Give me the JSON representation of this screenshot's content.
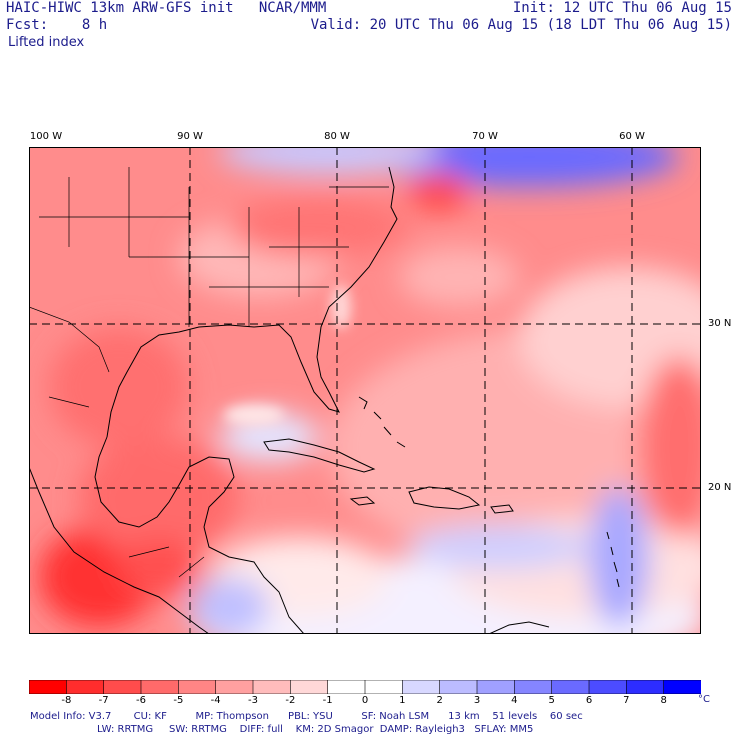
{
  "header": {
    "model_line": "HAIC-HIWC 13km ARW-GFS init   NCAR/MMM",
    "forecast_line": "Fcst:    8 h",
    "init_line": "Init: 12 UTC Thu 06 Aug 15",
    "valid_line": "Valid: 20 UTC Thu 06 Aug 15 (18 LDT Thu 06 Aug 15)"
  },
  "field_name": "Lifted index",
  "axes": {
    "longitude_labels": [
      "100 W",
      "90 W",
      "80 W",
      "70 W",
      "60 W"
    ],
    "latitude_labels": [
      "30 N",
      "20 N"
    ]
  },
  "colorbar": {
    "ticks": [
      "-8",
      "-7",
      "-6",
      "-5",
      "-4",
      "-3",
      "-2",
      "-1",
      "0",
      "1",
      "2",
      "3",
      "4",
      "5",
      "6",
      "7",
      "8"
    ],
    "units": "°C",
    "colors": [
      "#ff0000",
      "#ff2d2d",
      "#ff4c4c",
      "#ff6a6a",
      "#ff8585",
      "#ffa0a0",
      "#ffbcbc",
      "#ffd8d8",
      "#ffffff",
      "#ffffff",
      "#d8d8ff",
      "#bcbcff",
      "#a0a0ff",
      "#8585ff",
      "#6a6aff",
      "#4c4cff",
      "#2d2dff",
      "#0000ff"
    ]
  },
  "model_info": {
    "line1": "Model Info: V3.7       CU: KF         MP: Thompson      PBL: YSU         SF: Noah LSM      13 km    51 levels    60 sec",
    "line2": "LW: RRTMG     SW: RRTMG    DIFF: full    KM: 2D Smagor  DAMP: Rayleigh3   SFLAY: MM5"
  },
  "map_style": {
    "background": "#ff8c8c",
    "grid_color": "#000000",
    "coast_color": "#000000"
  }
}
